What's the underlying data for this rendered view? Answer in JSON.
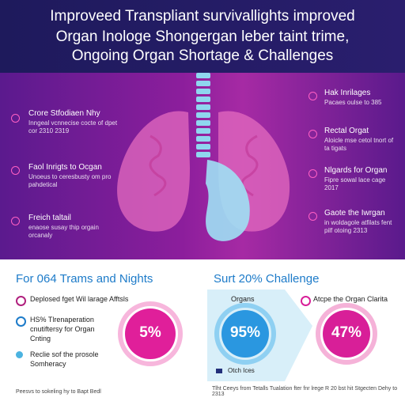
{
  "header": {
    "title_lines": [
      "Improveed Transpliant survivallights improved",
      "Organ Inologe Shongergan leber taint trime,",
      "Ongoing Organ Shortage & Challenges"
    ]
  },
  "left_labels": [
    {
      "title": "Crore Stfodiaen Nhy",
      "text": "Inngeal vcnnecise cocte of dpet cor 2310 2319"
    },
    {
      "title": "Faol Inrigts to Ocgan",
      "text": "Unoeus to ceresbusty om pro pahdetical"
    },
    {
      "title": "Freich taltail",
      "text": "enaose susay thip orgain orcanaly"
    }
  ],
  "right_labels": [
    {
      "title": "Hak Inrilages",
      "text": "Pacaes oulse to 385"
    },
    {
      "title": "Rectal Orgat",
      "text": "Aloicle mse cetol tnort of ta tigats"
    },
    {
      "title": "Nlgards for Organ",
      "text": "Fipre sowal lace cage 2017"
    },
    {
      "title": "Gaote the Iwrgan",
      "text": "in woldagole atfilats fent pilf otoing 2313"
    }
  ],
  "panel_left": {
    "heading": "For 064 Trams and Nights",
    "items": [
      "Deplosed fget Wil larage Afftsls",
      "HS% Tlrenaperation cnutiftersy for Organ Cnting",
      "Reclie sof the prosole Somheracy"
    ],
    "donut": "5%"
  },
  "panel_right": {
    "heading": "Surt 20% Challenge",
    "organs": "Organs",
    "donut_a": "95%",
    "item": "Atcpe the Organ Clarita",
    "donut_b": "47%",
    "legend": "Otch Ices"
  },
  "footer": {
    "left": "Peesvs to sokeling hy to Bapt Bedl",
    "right": "Tlht Ceeys from Tetalls Tualation fter fnr lrege R 20 bst hit Stgecten Dehy to 2313"
  }
}
